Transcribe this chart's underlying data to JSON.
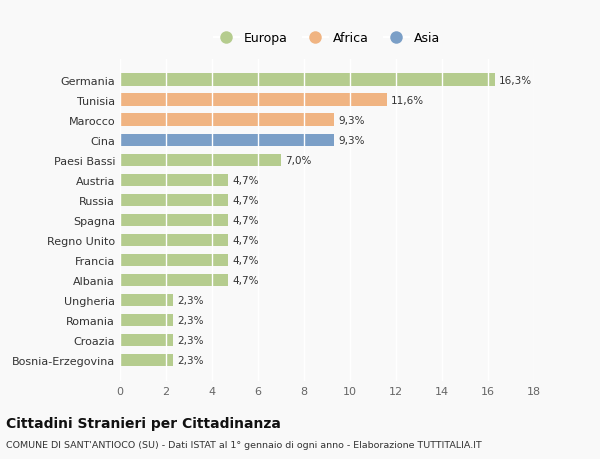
{
  "categories": [
    "Bosnia-Erzegovina",
    "Croazia",
    "Romania",
    "Ungheria",
    "Albania",
    "Francia",
    "Regno Unito",
    "Spagna",
    "Russia",
    "Austria",
    "Paesi Bassi",
    "Cina",
    "Marocco",
    "Tunisia",
    "Germania"
  ],
  "values": [
    2.3,
    2.3,
    2.3,
    2.3,
    4.7,
    4.7,
    4.7,
    4.7,
    4.7,
    4.7,
    7.0,
    9.3,
    9.3,
    11.6,
    16.3
  ],
  "labels": [
    "2,3%",
    "2,3%",
    "2,3%",
    "2,3%",
    "4,7%",
    "4,7%",
    "4,7%",
    "4,7%",
    "4,7%",
    "4,7%",
    "7,0%",
    "9,3%",
    "9,3%",
    "11,6%",
    "16,3%"
  ],
  "colors": [
    "#b5cc8e",
    "#b5cc8e",
    "#b5cc8e",
    "#b5cc8e",
    "#b5cc8e",
    "#b5cc8e",
    "#b5cc8e",
    "#b5cc8e",
    "#b5cc8e",
    "#b5cc8e",
    "#b5cc8e",
    "#7b9fc7",
    "#f0b482",
    "#f0b482",
    "#b5cc8e"
  ],
  "legend": [
    {
      "label": "Europa",
      "color": "#b5cc8e"
    },
    {
      "label": "Africa",
      "color": "#f0b482"
    },
    {
      "label": "Asia",
      "color": "#7b9fc7"
    }
  ],
  "xlim": [
    0,
    18
  ],
  "xticks": [
    0,
    2,
    4,
    6,
    8,
    10,
    12,
    14,
    16,
    18
  ],
  "title": "Cittadini Stranieri per Cittadinanza",
  "subtitle": "COMUNE DI SANT'ANTIOCO (SU) - Dati ISTAT al 1° gennaio di ogni anno - Elaborazione TUTTITALIA.IT",
  "background_color": "#f9f9f9",
  "grid_color": "#ffffff",
  "bar_height": 0.62
}
